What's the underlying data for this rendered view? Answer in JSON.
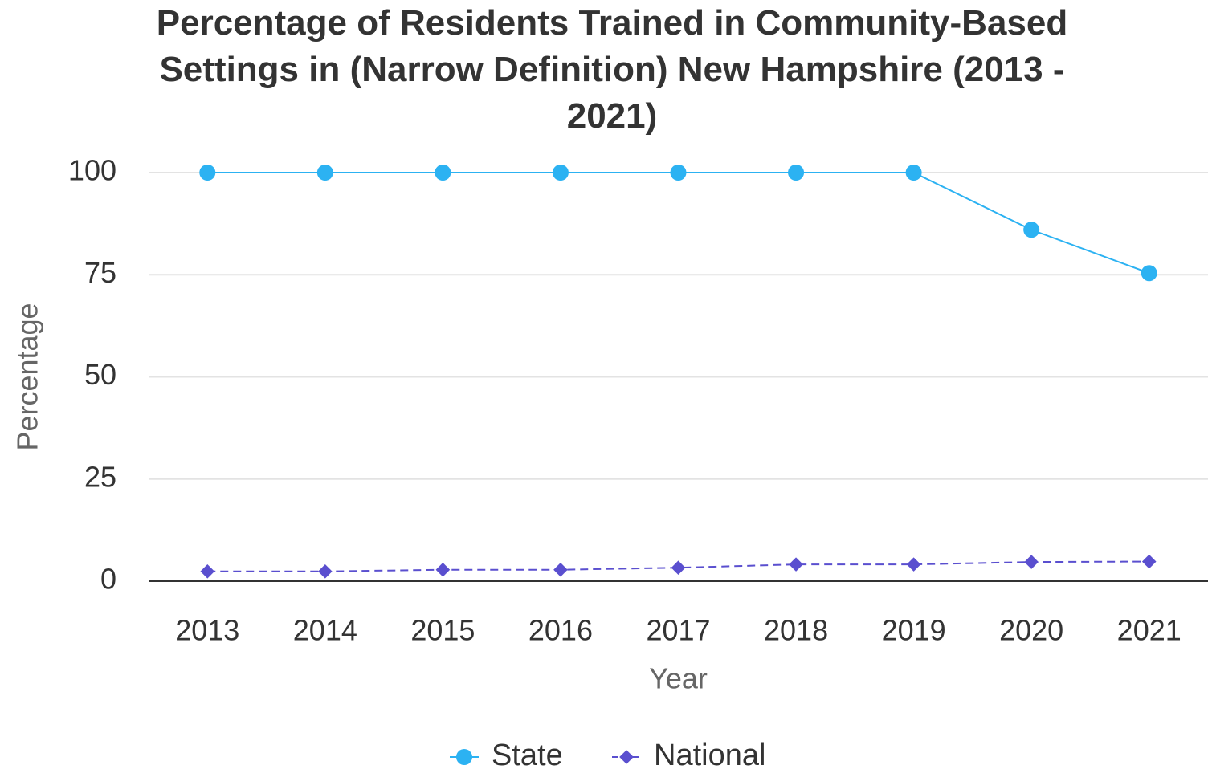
{
  "chart_data": {
    "type": "line",
    "title": "Percentage of Residents Trained in Community-Based Settings in (Narrow Definition) New Hampshire (2013 - 2021)",
    "x_label": "Year",
    "y_label": "Percentage",
    "categories": [
      "2013",
      "2014",
      "2015",
      "2016",
      "2017",
      "2018",
      "2019",
      "2020",
      "2021"
    ],
    "series": [
      {
        "name": "State",
        "color": "#2cb2f2",
        "marker": "circle",
        "dashed": false,
        "values": [
          100,
          100,
          100,
          100,
          100,
          100,
          100,
          86,
          75.4
        ]
      },
      {
        "name": "National",
        "color": "#5a4fcf",
        "marker": "diamond",
        "dashed": true,
        "values": [
          2.4,
          2.4,
          2.8,
          2.8,
          3.3,
          4.1,
          4.1,
          4.7,
          4.8
        ]
      }
    ],
    "ylim": [
      0,
      100
    ],
    "yticks": [
      0,
      25,
      50,
      75,
      100
    ],
    "grid": true,
    "legend": "bottom"
  }
}
